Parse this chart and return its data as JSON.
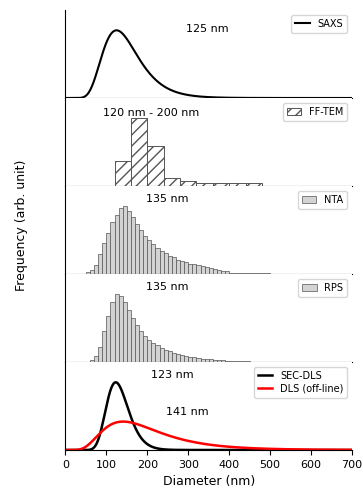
{
  "xlim": [
    0,
    700
  ],
  "xlabel": "Diameter (nm)",
  "ylabel": "Frequency (arb. unit)",
  "saxs": {
    "mode": 125,
    "sigma": 35,
    "label": "125 nm",
    "legend": "SAXS"
  },
  "fftem": {
    "bin_edges": [
      0,
      40,
      80,
      120,
      160,
      200,
      240,
      280,
      320,
      360,
      400,
      440,
      480,
      520,
      560,
      600,
      640,
      680,
      700
    ],
    "counts": [
      0,
      0,
      0,
      10,
      27,
      16,
      3,
      2,
      1,
      1,
      1,
      1,
      0,
      0,
      0,
      0,
      0,
      0
    ],
    "label": "120 nm - 200 nm",
    "legend": "FF-TEM"
  },
  "nta": {
    "bin_edges": [
      0,
      10,
      20,
      30,
      40,
      50,
      60,
      70,
      80,
      90,
      100,
      110,
      120,
      130,
      140,
      150,
      160,
      170,
      180,
      190,
      200,
      210,
      220,
      230,
      240,
      250,
      260,
      270,
      280,
      290,
      300,
      310,
      320,
      330,
      340,
      350,
      360,
      370,
      380,
      390,
      400,
      450,
      500,
      550,
      600,
      650,
      700
    ],
    "counts": [
      0,
      0,
      0,
      0,
      0,
      0.5,
      1.0,
      2.0,
      4.5,
      7.0,
      9.5,
      12.0,
      13.5,
      15.0,
      15.5,
      14.5,
      13.0,
      11.5,
      10.0,
      8.8,
      7.7,
      6.8,
      6.0,
      5.3,
      4.7,
      4.2,
      3.8,
      3.3,
      3.0,
      2.7,
      2.4,
      2.2,
      2.0,
      1.8,
      1.6,
      1.4,
      1.2,
      1.0,
      0.8,
      0.6,
      0.3,
      0.15,
      0.08,
      0.04,
      0.02,
      0
    ],
    "label": "135 nm",
    "legend": "NTA"
  },
  "rps": {
    "bin_edges": [
      0,
      10,
      20,
      30,
      40,
      50,
      60,
      70,
      80,
      90,
      100,
      110,
      120,
      130,
      140,
      150,
      160,
      170,
      180,
      190,
      200,
      210,
      220,
      230,
      240,
      250,
      260,
      270,
      280,
      290,
      300,
      310,
      320,
      330,
      340,
      350,
      360,
      370,
      380,
      390,
      400,
      450,
      500,
      550,
      600,
      650,
      700
    ],
    "counts": [
      0,
      0,
      0,
      0,
      0,
      0,
      0.5,
      1.5,
      4.0,
      8.0,
      12.0,
      15.5,
      17.5,
      17.0,
      15.5,
      13.5,
      11.5,
      9.5,
      8.0,
      6.8,
      5.8,
      5.0,
      4.3,
      3.7,
      3.2,
      2.8,
      2.4,
      2.1,
      1.8,
      1.6,
      1.4,
      1.2,
      1.0,
      0.9,
      0.8,
      0.7,
      0.6,
      0.5,
      0.4,
      0.3,
      0.2,
      0.1,
      0.05,
      0.02,
      0.01,
      0
    ],
    "label": "135 nm",
    "legend": "RPS"
  },
  "sec_dls": {
    "mode": 123,
    "sigma": 22,
    "amplitude": 1.0,
    "label": "123 nm",
    "legend": "SEC-DLS"
  },
  "dls": {
    "mode": 141,
    "sigma": 70,
    "amplitude": 0.42,
    "label": "141 nm",
    "legend": "DLS (off-line)"
  },
  "bar_color": "#d3d3d3",
  "bar_edge_color": "#555555",
  "line_color_saxs": "#000000",
  "line_color_sec": "#000000",
  "line_color_dls": "#ff0000"
}
